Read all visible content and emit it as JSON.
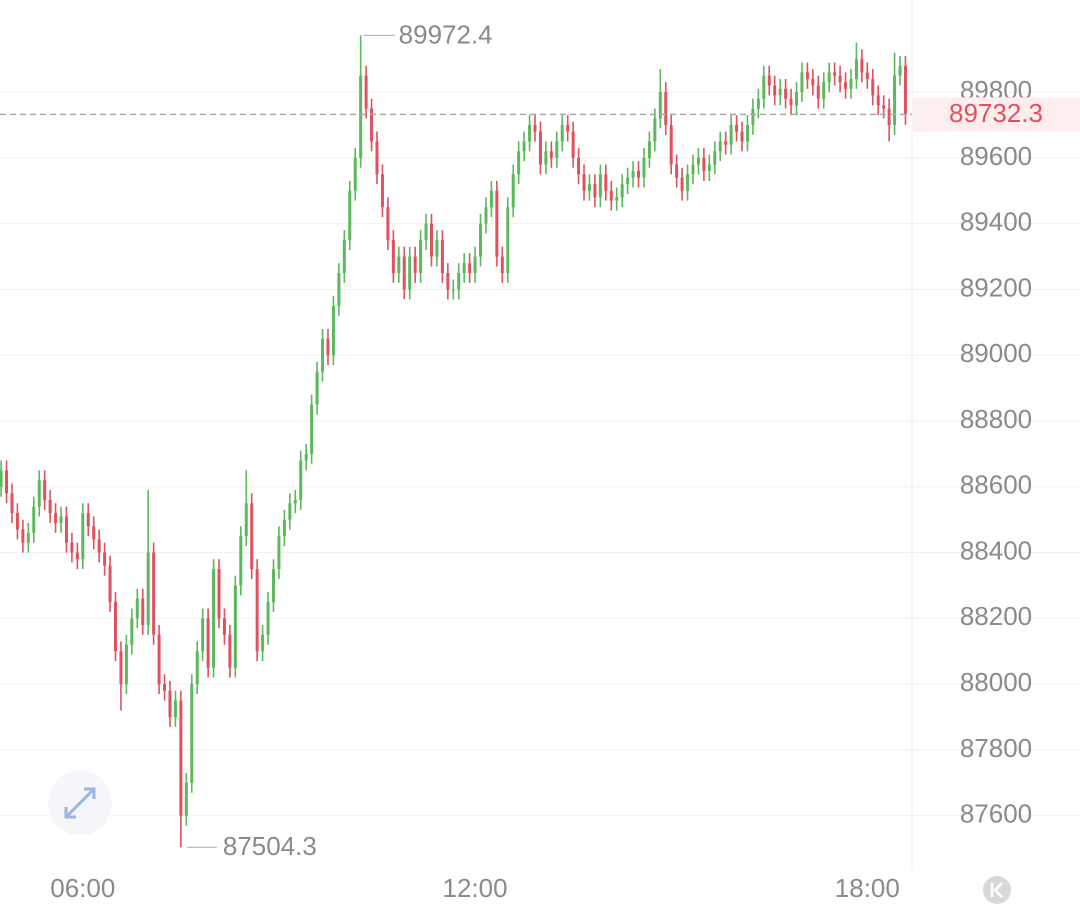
{
  "chart_data": {
    "type": "candlestick",
    "x": [
      285,
      290,
      295,
      300,
      305,
      310,
      315,
      320,
      325,
      330,
      335,
      340,
      345,
      350,
      355,
      360,
      365,
      370,
      375,
      380,
      385,
      390,
      395,
      400,
      405,
      410,
      415,
      420,
      425,
      430,
      435,
      440,
      445,
      450,
      455,
      460,
      465,
      470,
      475,
      480,
      485,
      490,
      495,
      500,
      505,
      510,
      515,
      520,
      525,
      530,
      535,
      540,
      545,
      550,
      555,
      560,
      565,
      570,
      575,
      580,
      585,
      590,
      595,
      600,
      605,
      610,
      615,
      620,
      625,
      630,
      635,
      640,
      645,
      650,
      655,
      660,
      665,
      670,
      675,
      680,
      685,
      690,
      695,
      700,
      705,
      710,
      715,
      720,
      725,
      730,
      735,
      740,
      745,
      750,
      755,
      760,
      765,
      770,
      775,
      780,
      785,
      790,
      795,
      800,
      805,
      810,
      815,
      820,
      825,
      830,
      835,
      840,
      845,
      850,
      855,
      860,
      865,
      870,
      875,
      880,
      885,
      890,
      895,
      900,
      905,
      910,
      915,
      920,
      925,
      930,
      935,
      940,
      945,
      950,
      955,
      960,
      965,
      970,
      975,
      980,
      985,
      990,
      995,
      1000,
      1005,
      1010,
      1015,
      1020,
      1025,
      1030,
      1035,
      1040,
      1045,
      1050,
      1055,
      1060,
      1065,
      1070,
      1075,
      1080,
      1085,
      1090,
      1095,
      1100,
      1105,
      1110,
      1115
    ],
    "open": [
      88600,
      88650,
      88580,
      88520,
      88470,
      88430,
      88460,
      88540,
      88620,
      88560,
      88520,
      88490,
      88510,
      88430,
      88400,
      88380,
      88520,
      88480,
      88440,
      88400,
      88360,
      88250,
      88100,
      88000,
      88120,
      88200,
      88260,
      88180,
      88400,
      88150,
      88000,
      87980,
      87900,
      87950,
      87600,
      87700,
      88000,
      88100,
      88200,
      88050,
      88350,
      88200,
      88150,
      88050,
      88300,
      88450,
      88550,
      88350,
      88100,
      88150,
      88250,
      88350,
      88450,
      88500,
      88550,
      88560,
      88680,
      88700,
      88850,
      88950,
      89050,
      89000,
      89150,
      89250,
      89350,
      89500,
      89600,
      89850,
      89750,
      89650,
      89550,
      89450,
      89350,
      89250,
      89300,
      89200,
      89300,
      89250,
      89350,
      89400,
      89300,
      89350,
      89250,
      89200,
      89200,
      89250,
      89280,
      89250,
      89300,
      89400,
      89450,
      89500,
      89300,
      89250,
      89450,
      89550,
      89620,
      89650,
      89700,
      89680,
      89580,
      89620,
      89600,
      89650,
      89700,
      89680,
      89600,
      89550,
      89500,
      89520,
      89480,
      89550,
      89500,
      89470,
      89480,
      89520,
      89540,
      89560,
      89540,
      89600,
      89650,
      89720,
      89800,
      89700,
      89580,
      89540,
      89500,
      89550,
      89580,
      89600,
      89560,
      89580,
      89620,
      89650,
      89640,
      89700,
      89680,
      89650,
      89700,
      89750,
      89780,
      89850,
      89820,
      89790,
      89810,
      89780,
      89760,
      89800,
      89860,
      89840,
      89820,
      89780,
      89830,
      89860,
      89850,
      89830,
      89810,
      89840,
      89900,
      89860,
      89840,
      89790,
      89760,
      89750,
      89700,
      89850,
      89880
    ],
    "high": [
      88680,
      88680,
      88610,
      88550,
      88500,
      88490,
      88570,
      88650,
      88650,
      88590,
      88550,
      88540,
      88540,
      88460,
      88430,
      88550,
      88550,
      88510,
      88470,
      88430,
      88390,
      88280,
      88130,
      88150,
      88230,
      88290,
      88290,
      88590,
      88430,
      88180,
      88030,
      88010,
      87980,
      87980,
      87730,
      88030,
      88130,
      88230,
      88230,
      88380,
      88380,
      88230,
      88180,
      88330,
      88480,
      88650,
      88580,
      88380,
      88180,
      88280,
      88380,
      88480,
      88530,
      88580,
      88590,
      88710,
      88730,
      88880,
      88980,
      89080,
      89080,
      89180,
      89280,
      89380,
      89530,
      89630,
      89972.4,
      89880,
      89780,
      89680,
      89580,
      89480,
      89380,
      89330,
      89330,
      89330,
      89330,
      89380,
      89430,
      89430,
      89380,
      89380,
      89280,
      89230,
      89280,
      89310,
      89310,
      89330,
      89430,
      89480,
      89530,
      89530,
      89330,
      89480,
      89580,
      89650,
      89680,
      89730,
      89730,
      89710,
      89650,
      89650,
      89680,
      89730,
      89730,
      89710,
      89630,
      89580,
      89550,
      89550,
      89580,
      89580,
      89530,
      89510,
      89550,
      89570,
      89590,
      89590,
      89630,
      89680,
      89750,
      89870,
      89830,
      89730,
      89610,
      89570,
      89580,
      89610,
      89630,
      89630,
      89610,
      89650,
      89680,
      89680,
      89730,
      89730,
      89710,
      89730,
      89780,
      89810,
      89880,
      89880,
      89850,
      89840,
      89840,
      89810,
      89830,
      89890,
      89890,
      89870,
      89850,
      89860,
      89890,
      89890,
      89880,
      89860,
      89870,
      89950,
      89930,
      89890,
      89870,
      89820,
      89790,
      89780,
      89920,
      89910,
      89910
    ],
    "low": [
      88570,
      88550,
      88490,
      88440,
      88400,
      88400,
      88430,
      88510,
      88530,
      88490,
      88460,
      88460,
      88400,
      88370,
      88350,
      88350,
      88450,
      88410,
      88370,
      88330,
      88220,
      88070,
      87920,
      87970,
      88090,
      88170,
      88150,
      88150,
      88120,
      87970,
      87950,
      87870,
      87870,
      87504.3,
      87570,
      87670,
      87970,
      88070,
      88020,
      88020,
      88170,
      88120,
      88020,
      88020,
      88270,
      88420,
      88320,
      88070,
      88070,
      88120,
      88220,
      88320,
      88420,
      88470,
      88520,
      88530,
      88650,
      88670,
      88820,
      88920,
      88970,
      88970,
      89120,
      89220,
      89320,
      89470,
      89570,
      89720,
      89620,
      89520,
      89420,
      89320,
      89220,
      89220,
      89170,
      89170,
      89220,
      89220,
      89320,
      89270,
      89270,
      89220,
      89170,
      89170,
      89170,
      89220,
      89220,
      89220,
      89270,
      89370,
      89420,
      89270,
      89220,
      89220,
      89420,
      89520,
      89590,
      89620,
      89650,
      89550,
      89550,
      89570,
      89570,
      89620,
      89650,
      89570,
      89520,
      89470,
      89470,
      89450,
      89450,
      89470,
      89440,
      89440,
      89450,
      89490,
      89510,
      89510,
      89510,
      89570,
      89620,
      89690,
      89670,
      89550,
      89510,
      89470,
      89470,
      89520,
      89550,
      89530,
      89530,
      89550,
      89590,
      89610,
      89610,
      89650,
      89620,
      89620,
      89670,
      89720,
      89750,
      89790,
      89760,
      89760,
      89750,
      89730,
      89730,
      89770,
      89810,
      89790,
      89750,
      89750,
      89800,
      89820,
      89800,
      89780,
      89780,
      89810,
      89830,
      89810,
      89760,
      89730,
      89720,
      89650,
      89670,
      89820,
      89700
    ],
    "close": [
      88650,
      88580,
      88520,
      88470,
      88430,
      88460,
      88540,
      88620,
      88560,
      88520,
      88490,
      88510,
      88430,
      88400,
      88380,
      88520,
      88480,
      88440,
      88400,
      88360,
      88250,
      88100,
      88000,
      88120,
      88200,
      88260,
      88180,
      88400,
      88150,
      88000,
      87980,
      87900,
      87950,
      87600,
      87700,
      88000,
      88100,
      88200,
      88050,
      88350,
      88200,
      88150,
      88050,
      88300,
      88450,
      88550,
      88350,
      88100,
      88150,
      88250,
      88350,
      88450,
      88500,
      88550,
      88560,
      88680,
      88700,
      88850,
      88950,
      89050,
      89000,
      89150,
      89250,
      89350,
      89500,
      89600,
      89850,
      89750,
      89650,
      89550,
      89450,
      89350,
      89250,
      89300,
      89200,
      89300,
      89250,
      89350,
      89400,
      89300,
      89350,
      89250,
      89200,
      89200,
      89250,
      89280,
      89250,
      89300,
      89400,
      89450,
      89500,
      89300,
      89250,
      89450,
      89550,
      89620,
      89650,
      89700,
      89680,
      89580,
      89620,
      89600,
      89650,
      89700,
      89680,
      89600,
      89550,
      89500,
      89520,
      89480,
      89550,
      89500,
      89470,
      89480,
      89520,
      89540,
      89560,
      89540,
      89600,
      89650,
      89720,
      89800,
      89700,
      89580,
      89540,
      89500,
      89550,
      89580,
      89600,
      89560,
      89580,
      89620,
      89650,
      89640,
      89700,
      89680,
      89650,
      89700,
      89750,
      89780,
      89850,
      89820,
      89790,
      89810,
      89780,
      89760,
      89800,
      89860,
      89840,
      89820,
      89780,
      89830,
      89860,
      89850,
      89830,
      89810,
      89840,
      89900,
      89860,
      89840,
      89790,
      89760,
      89750,
      89700,
      89850,
      89880,
      89732.3
    ],
    "up_color": "#5cb85c",
    "down_color": "#e0505f",
    "xlim": [
      284,
      1121
    ],
    "xticks": [
      {
        "value": 360,
        "label": "06:00"
      },
      {
        "value": 720,
        "label": "12:00"
      },
      {
        "value": 1080,
        "label": "18:00"
      }
    ],
    "ylim": [
      87435,
      90080
    ],
    "yticks": [
      87600,
      87800,
      88000,
      88200,
      88400,
      88600,
      88800,
      89000,
      89200,
      89400,
      89600,
      89800
    ],
    "grid": true
  }
}
